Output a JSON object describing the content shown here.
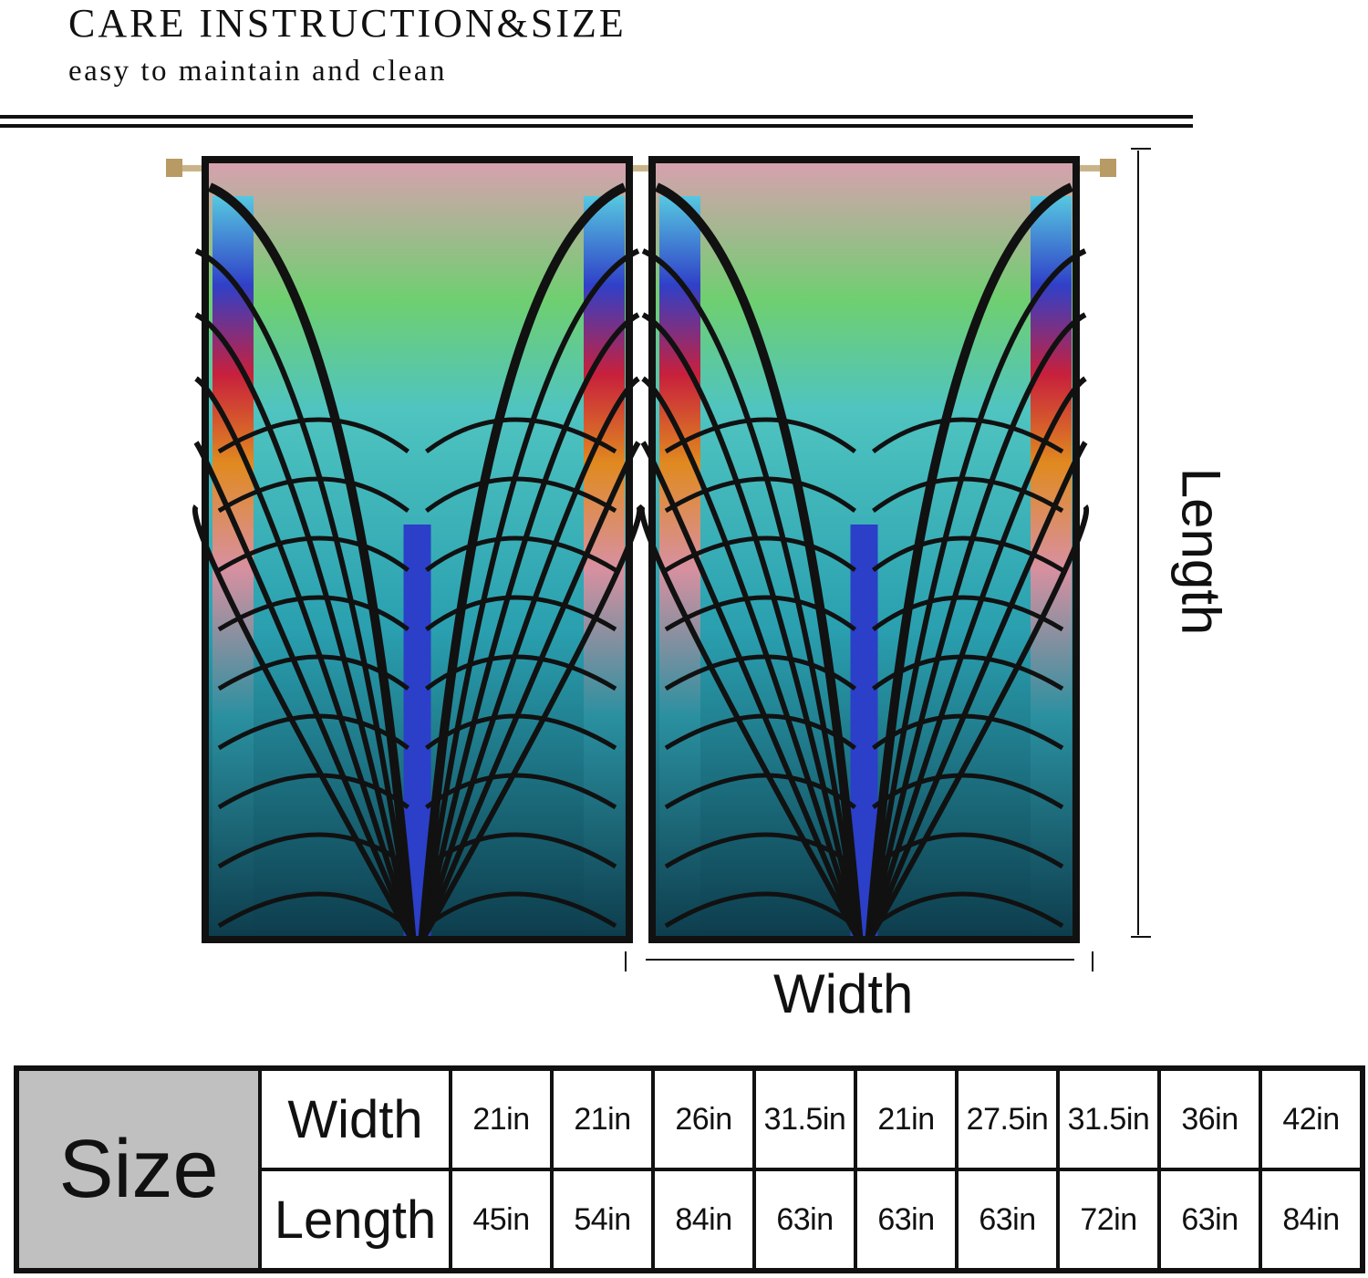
{
  "header": {
    "title": "CARE INSTRUCTION&SIZE",
    "subtitle": "easy to maintain and clean"
  },
  "diagram": {
    "length_label": "Length",
    "width_label": "Width",
    "colors": {
      "teal": "#2aa6a8",
      "dark_teal": "#0f4f5e",
      "green": "#5fcf6a",
      "pink": "#d99aa0",
      "blue": "#2b3fc8",
      "red": "#c8203c",
      "black": "#111111"
    }
  },
  "size_table": {
    "header": "Size",
    "row_labels": [
      "Width",
      "Length"
    ],
    "width": [
      "21in",
      "21in",
      "26in",
      "31.5in",
      "21in",
      "27.5in",
      "31.5in",
      "36in",
      "42in"
    ],
    "length": [
      "45in",
      "54in",
      "84in",
      "63in",
      "63in",
      "63in",
      "72in",
      "63in",
      "84in"
    ],
    "header_bg": "#c0c0c0"
  }
}
